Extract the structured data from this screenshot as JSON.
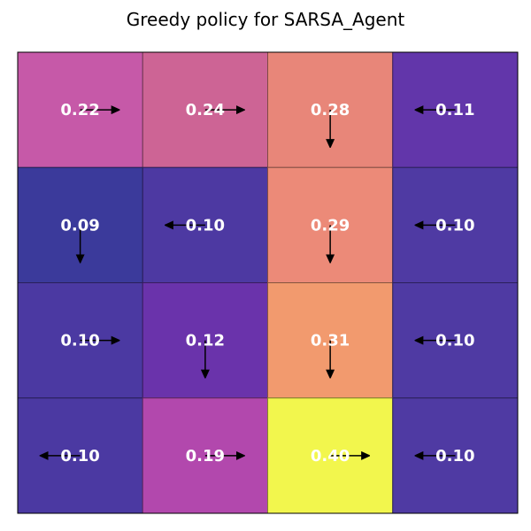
{
  "title": "Greedy policy for SARSA_Agent",
  "chart_data": {
    "type": "heatmap",
    "title": "Greedy policy for SARSA_Agent",
    "rows": 4,
    "cols": 4,
    "colormap": "plasma",
    "value_range": [
      0.09,
      0.4
    ],
    "grid": [
      [
        {
          "value": 0.22,
          "label": "0.22",
          "action": "right",
          "color": "#c659a8"
        },
        {
          "value": 0.24,
          "label": "0.24",
          "action": "right",
          "color": "#cd6495"
        },
        {
          "value": 0.28,
          "label": "0.28",
          "action": "down",
          "color": "#e88679"
        },
        {
          "value": 0.11,
          "label": "0.11",
          "action": "left",
          "color": "#6236aa"
        }
      ],
      [
        {
          "value": 0.09,
          "label": "0.09",
          "action": "down",
          "color": "#3b3a9b"
        },
        {
          "value": 0.1,
          "label": "0.10",
          "action": "left",
          "color": "#4d39a2"
        },
        {
          "value": 0.29,
          "label": "0.29",
          "action": "down",
          "color": "#ec8a78"
        },
        {
          "value": 0.1,
          "label": "0.10",
          "action": "left",
          "color": "#4f3aa3"
        }
      ],
      [
        {
          "value": 0.1,
          "label": "0.10",
          "action": "right",
          "color": "#4b39a2"
        },
        {
          "value": 0.12,
          "label": "0.12",
          "action": "down",
          "color": "#6a33ab"
        },
        {
          "value": 0.31,
          "label": "0.31",
          "action": "down",
          "color": "#f29a6e"
        },
        {
          "value": 0.1,
          "label": "0.10",
          "action": "left",
          "color": "#4f3aa3"
        }
      ],
      [
        {
          "value": 0.1,
          "label": "0.10",
          "action": "left",
          "color": "#4b39a2"
        },
        {
          "value": 0.19,
          "label": "0.19",
          "action": "right",
          "color": "#b248ad"
        },
        {
          "value": 0.4,
          "label": "0.40",
          "action": "right",
          "color": "#f2f64d"
        },
        {
          "value": 0.1,
          "label": "0.10",
          "action": "left",
          "color": "#4f3aa3"
        }
      ]
    ],
    "cell_text_color": "#ffffff",
    "arrow_color": "#000000"
  }
}
